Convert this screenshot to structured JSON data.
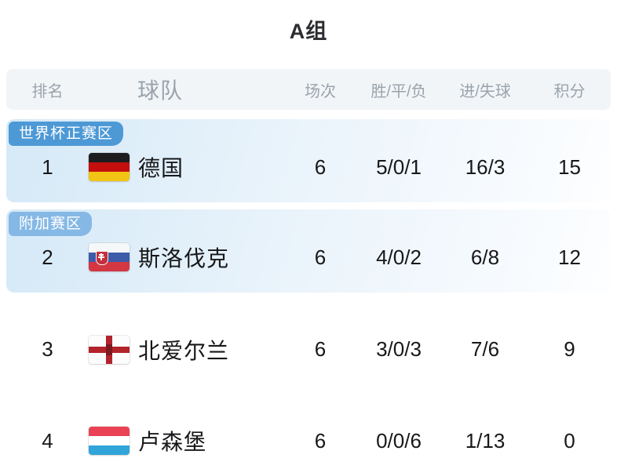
{
  "page": {
    "title": "A组"
  },
  "table": {
    "headers": [
      "排名",
      "球队",
      "场次",
      "胜/平/负",
      "进/失球",
      "积分"
    ],
    "rows": [
      {
        "zone_badge": "世界杯正赛区",
        "zone_badge_color": "#4d99d5",
        "rank": "1",
        "team": "德国",
        "flag_icon": "germany-flag",
        "matches": "6",
        "win_draw_loss": "5/0/1",
        "goals_for_against": "16/3",
        "points": "15",
        "highlighted": true
      },
      {
        "zone_badge": "附加赛区",
        "zone_badge_color": "#85b8e5",
        "rank": "2",
        "team": "斯洛伐克",
        "flag_icon": "slovakia-flag",
        "matches": "6",
        "win_draw_loss": "4/0/2",
        "goals_for_against": "6/8",
        "points": "12",
        "highlighted": true
      },
      {
        "rank": "3",
        "team": "北爱尔兰",
        "flag_icon": "northern-ireland-flag",
        "matches": "6",
        "win_draw_loss": "3/0/3",
        "goals_for_against": "7/6",
        "points": "9",
        "highlighted": false
      },
      {
        "rank": "4",
        "team": "卢森堡",
        "flag_icon": "luxembourg-flag",
        "matches": "6",
        "win_draw_loss": "0/0/6",
        "goals_for_against": "1/13",
        "points": "0",
        "highlighted": false
      }
    ],
    "colors": {
      "header_background": "#f2f5f8",
      "header_text": "#9aa3ab",
      "highlight_gradient_start": "#d5e9f7",
      "highlight_gradient_end": "#fdfeff",
      "zone_badge_primary": "#4d99d5",
      "zone_badge_secondary": "#85b8e5",
      "body_text": "#17181a"
    }
  }
}
